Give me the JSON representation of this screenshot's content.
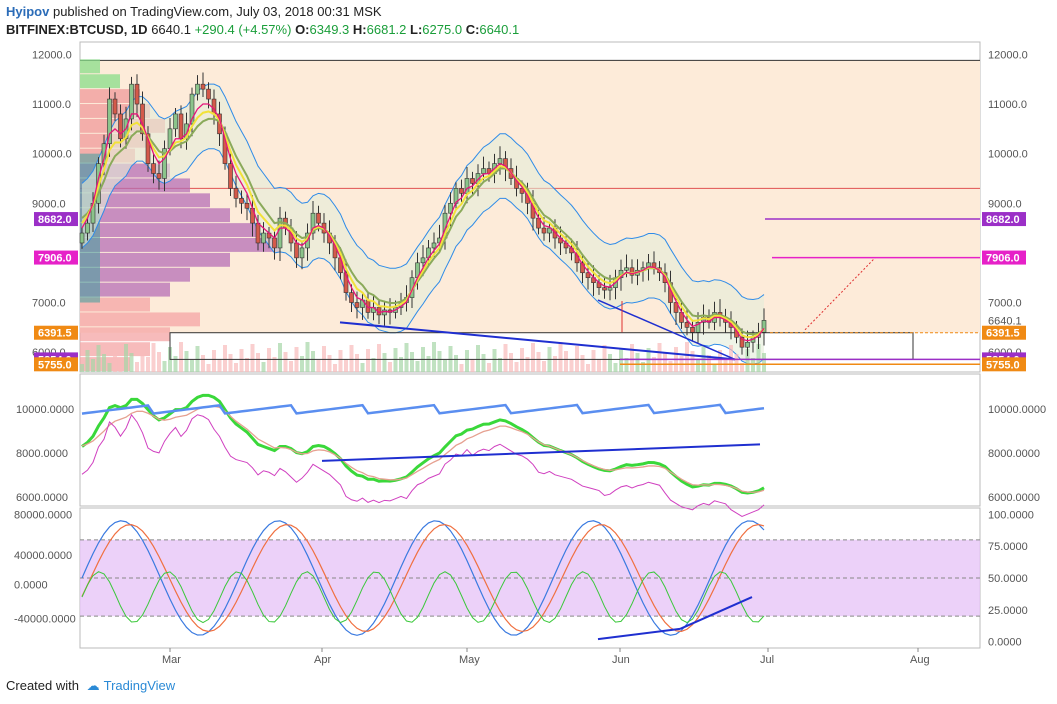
{
  "header": {
    "author": "Hyipov",
    "published": "published on TradingView.com, July 03, 2018 00:31 MSK",
    "symbol": "BITFINEX:BTCUSD, 1D",
    "last": "6640.1",
    "change": "+290.4 (+4.57%)",
    "o_label": "O:",
    "o": "6349.3",
    "h_label": "H:",
    "h": "6681.2",
    "l_label": "L:",
    "l": "6275.0",
    "c_label": "C:",
    "c": "6640.1"
  },
  "footer": {
    "created": "Created with",
    "brand": "TradingView"
  },
  "colors": {
    "bg_zone": "#fdebd9",
    "candle_up": "#3a8a3a",
    "candle_down": "#b8301f",
    "ema_fast": "#e6147a",
    "ema_yellow": "#f2e23a",
    "ema_green": "#8aaa5a",
    "bb_blue": "#2e8be8",
    "trendline": "#1f2fd0",
    "level_purple": "#9b2fc7",
    "level_pink": "#e621c8",
    "level_orange": "#f08a14",
    "stoch_band": "#e7c6f7"
  },
  "chart_data": [
    {
      "type": "candlestick",
      "title": "BITFINEX:BTCUSD, 1D",
      "ylim": [
        5600,
        12250
      ],
      "y_ticks": [
        "12000.0",
        "11000.0",
        "10000.0",
        "9000.0",
        "7000.0",
        "6000.0"
      ],
      "x_ticks": [
        "Mar",
        "Apr",
        "May",
        "Jun",
        "Jul",
        "Aug"
      ],
      "price_tags": [
        {
          "label": "8682.0",
          "value": 8682,
          "color": "#9b2fc7"
        },
        {
          "label": "7906.0",
          "value": 7906,
          "color": "#e621c8"
        },
        {
          "label": "6640.1",
          "value": 6640,
          "color": "none"
        },
        {
          "label": "6391.5",
          "value": 6391.5,
          "color": "#f08a14"
        },
        {
          "label": "5854.0",
          "value": 5854,
          "color": "#9b2fc7"
        },
        {
          "label": "5755.0",
          "value": 5755,
          "color": "#f08a14"
        }
      ],
      "close": [
        8400,
        8600,
        9000,
        9800,
        10200,
        11100,
        10800,
        10300,
        10700,
        11400,
        11000,
        10400,
        9800,
        9600,
        9500,
        10100,
        10500,
        10800,
        10300,
        10600,
        11200,
        11400,
        11300,
        11100,
        10800,
        10400,
        9800,
        9300,
        9100,
        9000,
        8900,
        8600,
        8200,
        8400,
        8300,
        8100,
        8700,
        8500,
        8200,
        7900,
        8100,
        8400,
        8800,
        8600,
        8400,
        8200,
        7900,
        7600,
        7200,
        7000,
        6900,
        7050,
        6800,
        6900,
        6750,
        6850,
        6800,
        6900,
        7000,
        7100,
        7500,
        7800,
        7900,
        8100,
        8200,
        8300,
        8800,
        9000,
        9300,
        9200,
        9500,
        9400,
        9600,
        9700,
        9600,
        9800,
        9900,
        9700,
        9500,
        9300,
        9200,
        9000,
        8700,
        8500,
        8400,
        8500,
        8300,
        8200,
        8100,
        8000,
        7800,
        7600,
        7500,
        7400,
        7300,
        7250,
        7300,
        7500,
        7650,
        7700,
        7550,
        7650,
        7700,
        7800,
        7700,
        7600,
        7400,
        7000,
        6800,
        6600,
        6500,
        6400,
        6600,
        6700,
        6600,
        6800,
        6700,
        6600,
        6500,
        6300,
        6100,
        6200,
        6300,
        6400,
        6640
      ],
      "ema_fast": [
        8500,
        8700,
        9000,
        9500,
        9900,
        10400,
        10500,
        10400,
        10500,
        10800,
        10800,
        10600,
        10300,
        10000,
        9800,
        9900,
        10100,
        10300,
        10300,
        10400,
        10700,
        10900,
        11000,
        11000,
        10900,
        10700,
        10300,
        9900,
        9600,
        9400,
        9200,
        8900,
        8600,
        8500,
        8400,
        8300,
        8500,
        8500,
        8400,
        8200,
        8150,
        8250,
        8500,
        8550,
        8500,
        8350,
        8150,
        7900,
        7550,
        7300,
        7100,
        7050,
        6900,
        6900,
        6800,
        6820,
        6810,
        6850,
        6920,
        7010,
        7250,
        7500,
        7700,
        7900,
        8050,
        8180,
        8480,
        8750,
        9020,
        9110,
        9300,
        9350,
        9480,
        9590,
        9600,
        9700,
        9800,
        9750,
        9620,
        9460,
        9330,
        9160,
        8930,
        8710,
        8550,
        8520,
        8410,
        8300,
        8200,
        8100,
        7950,
        7770,
        7630,
        7510,
        7400,
        7330,
        7310,
        7400,
        7520,
        7610,
        7580,
        7610,
        7650,
        7720,
        7710,
        7650,
        7520,
        7260,
        7030,
        6810,
        6650,
        6520,
        6560,
        6630,
        6610,
        6700,
        6700,
        6650,
        6570,
        6430,
        6260,
        6230,
        6260,
        6330,
        6480
      ],
      "ema_slow": [
        8700,
        8800,
        8950,
        9200,
        9450,
        9750,
        9950,
        10050,
        10150,
        10350,
        10450,
        10450,
        10350,
        10200,
        10050,
        10000,
        10050,
        10150,
        10200,
        10250,
        10400,
        10550,
        10650,
        10700,
        10700,
        10650,
        10450,
        10200,
        9950,
        9750,
        9550,
        9300,
        9050,
        8900,
        8750,
        8600,
        8620,
        8600,
        8520,
        8380,
        8300,
        8320,
        8450,
        8500,
        8480,
        8400,
        8250,
        8080,
        7820,
        7620,
        7450,
        7350,
        7200,
        7150,
        7050,
        7020,
        6990,
        6990,
        7020,
        7080,
        7250,
        7420,
        7570,
        7740,
        7890,
        8020,
        8270,
        8490,
        8730,
        8860,
        9060,
        9160,
        9300,
        9430,
        9500,
        9600,
        9700,
        9700,
        9620,
        9510,
        9420,
        9290,
        9100,
        8910,
        8760,
        8690,
        8580,
        8470,
        8370,
        8260,
        8120,
        7960,
        7820,
        7700,
        7590,
        7510,
        7470,
        7490,
        7550,
        7600,
        7590,
        7610,
        7640,
        7690,
        7690,
        7660,
        7570,
        7380,
        7200,
        7020,
        6870,
        6740,
        6720,
        6740,
        6720,
        6760,
        6750,
        6710,
        6650,
        6550,
        6420,
        6370,
        6360,
        6380,
        6460
      ]
    },
    {
      "type": "line",
      "y_ticks": [
        "10000.0000",
        "8000.0000",
        "6000.0000"
      ],
      "ylim": [
        5600,
        11600
      ]
    },
    {
      "type": "line",
      "y_ticks_left": [
        "80000.0000",
        "40000.0000",
        "0.0000",
        "-40000.0000"
      ],
      "y_ticks_right": [
        "100.0000",
        "75.0000",
        "50.0000",
        "25.0000",
        "0.0000"
      ],
      "ylim": [
        -5,
        105
      ]
    }
  ]
}
